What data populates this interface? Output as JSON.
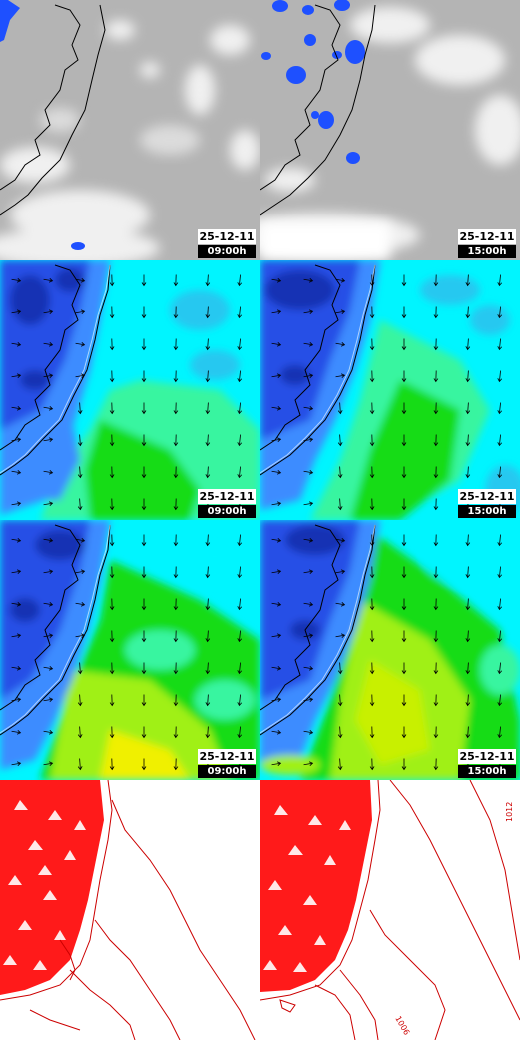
{
  "panels": [
    {
      "id": "sat-0900",
      "type": "satellite",
      "date": "25-12-11",
      "time": "09:00h"
    },
    {
      "id": "sat-1500",
      "type": "satellite",
      "date": "25-12-11",
      "time": "15:00h"
    },
    {
      "id": "wind-low-0900",
      "type": "wind-field",
      "date": "25-12-11",
      "time": "09:00h"
    },
    {
      "id": "wind-low-1500",
      "type": "wind-field",
      "date": "25-12-11",
      "time": "15:00h"
    },
    {
      "id": "wind-high-0900",
      "type": "wind-field",
      "date": "25-12-11",
      "time": "09:00h"
    },
    {
      "id": "wind-high-1500",
      "type": "wind-field",
      "date": "25-12-11",
      "time": "15:00h"
    },
    {
      "id": "pressure-0900",
      "type": "isobars"
    },
    {
      "id": "pressure-1500",
      "type": "isobars",
      "isobar_labels": [
        "1012",
        "1006"
      ]
    }
  ],
  "colors": {
    "cloud_gray": "#b4b4b4",
    "cloud_white": "#f0f0f0",
    "precip_blue": "#1e50ff",
    "wind_blue": "#2850e6",
    "wind_cyan": "#00f5ff",
    "wind_green": "#14dc14",
    "wind_yellow": "#f0f000",
    "isobar_red": "#ff0000",
    "coast": "#000000"
  }
}
